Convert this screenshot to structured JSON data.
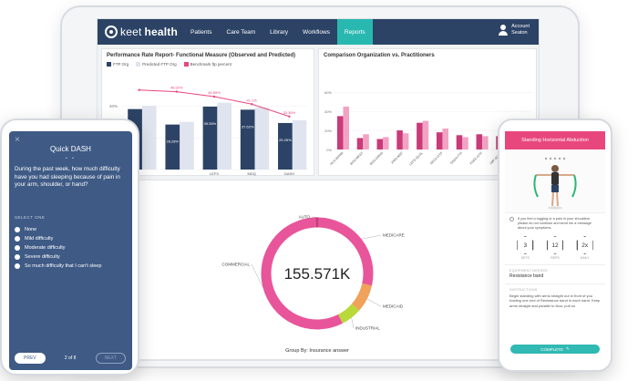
{
  "app": {
    "logo_text": "keet",
    "logo_text_bold": "health",
    "nav": [
      "Patients",
      "Care Team",
      "Library",
      "Workflows",
      "Reports"
    ],
    "active_nav": "Reports",
    "account_label": "Account",
    "account_name": "Seaton"
  },
  "colors": {
    "nav_bg": "#2c4366",
    "accent_teal": "#28b8b0",
    "pink": "#e8477e",
    "navy": "#2c4366",
    "light_bar": "#dfe4ef",
    "phone_blue": "#3e5a85"
  },
  "chart_data": [
    {
      "type": "bar",
      "title": "Performance Rate Report- Functional Measure (Observed and Predicted)",
      "categories": [
        "",
        "",
        "LEFS",
        "MDQ",
        "DASH"
      ],
      "series": [
        {
          "name": "FTP Org",
          "values": [
            38,
            28.28,
            39.55,
            37.62,
            29.25
          ]
        },
        {
          "name": "Predicted FTP Org",
          "values": [
            40,
            30,
            42,
            39,
            31
          ]
        },
        {
          "name": "Benchmark ftp percent",
          "values": [
            50,
            48.92,
            45.85,
            41.1,
            33.36
          ]
        }
      ],
      "bar_labels": [
        "",
        "28.28%",
        "39.55%",
        "37.62%",
        "29.25%"
      ],
      "line_labels": [
        "",
        "48.92%",
        "45.85%",
        "41.1%",
        "33.36%"
      ],
      "y_ticks": [
        "40%",
        "20%",
        "0%"
      ],
      "ylim": [
        0,
        55
      ],
      "legend_position": "top"
    },
    {
      "type": "bar",
      "title": "Comparison Organization vs. Practitioners",
      "categories": [
        "HCA-BARBI",
        "BOS-WEST",
        "BOS-GRND",
        "ARIS-MSF",
        "LEFS-QUAL",
        "NECK-GTP",
        "DASH-FTP",
        "KNEE-GTP",
        "LBP-SCOR",
        "SHLD-FTP"
      ],
      "series": [
        {
          "name": "Organization",
          "values": [
            35,
            12,
            11,
            20,
            28,
            18,
            15,
            16,
            14,
            10
          ]
        },
        {
          "name": "Practitioners",
          "values": [
            45,
            16,
            13,
            17,
            30,
            22,
            13,
            14,
            17,
            8
          ]
        }
      ],
      "y_ticks": [
        "60%",
        "40%",
        "20%",
        "0%"
      ],
      "ylim": [
        0,
        65
      ]
    },
    {
      "type": "pie",
      "center_value": "155.571K",
      "group_by_label": "Group By: Insurance answer",
      "slices": [
        {
          "label": "AUTO",
          "value": 1,
          "color": "#c93a78"
        },
        {
          "label": "MEDICARE",
          "value": 28,
          "color": "#e8559a"
        },
        {
          "label": "MEDICAID",
          "value": 8,
          "color": "#f0a15a"
        },
        {
          "label": "INDUSTRIAL",
          "value": 6,
          "color": "#b9d83a"
        },
        {
          "label": "COMMERCIAL",
          "value": 57,
          "color": "#e8559a"
        }
      ]
    }
  ],
  "phone_left": {
    "title": "Quick DASH",
    "close_icon": "×",
    "question": "During the past week, how much difficulty have you had sleeping because of pain in your arm, shoulder, or hand?",
    "select_label": "SELECT ONE",
    "options": [
      "None",
      "Mild difficulty",
      "Moderate difficulty",
      "Severe difficulty",
      "So much difficulty that I can't sleep"
    ],
    "prev_label": "PREV",
    "page_indicator": "2 of 8",
    "next_label": "NEXT"
  },
  "phone_right": {
    "title": "Standing Horizontal Abduction",
    "note": "If you feel a tugging or a pain in your shoulders please do not continue and send me a message about your symptoms.",
    "stats": [
      {
        "value": "3",
        "label": "SETS"
      },
      {
        "value": "12",
        "label": "REPS"
      },
      {
        "value": "2x",
        "label": "DAILY"
      }
    ],
    "equipment_label": "EQUIPMENT NEEDED",
    "equipment_value": "Resistance band",
    "instructions_label": "INSTRUCTIONS",
    "instructions": "Begin standing with arms straight out in front of you holding one end of Resistance band in each hand. Keep arms straight and parallel to floor, pull on",
    "complete_label": "COMPLETE"
  }
}
